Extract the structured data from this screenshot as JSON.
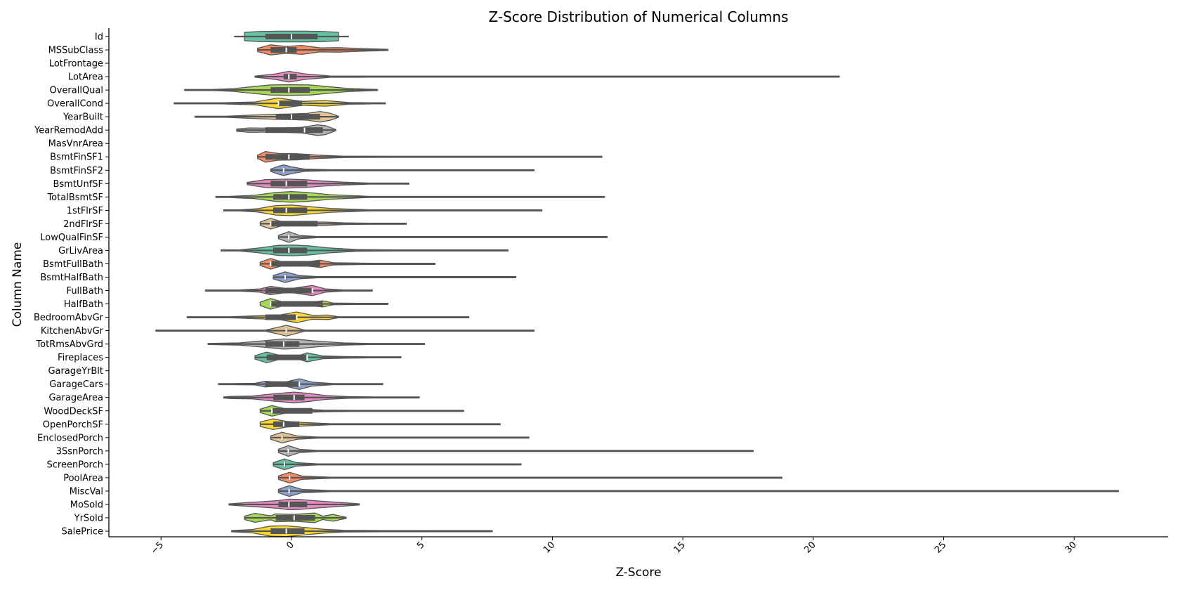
{
  "chart_data": {
    "type": "violin",
    "title": "Z-Score Distribution of Numerical Columns",
    "xlabel": "Z-Score",
    "ylabel": "Column Name",
    "xlim": [
      -7,
      33.6
    ],
    "xticks": [
      -5,
      0,
      5,
      10,
      15,
      20,
      25,
      30
    ],
    "xtick_labels": [
      "−5",
      "0",
      "5",
      "10",
      "15",
      "20",
      "25",
      "30"
    ],
    "grid": false,
    "palette": [
      "#66c2a5",
      "#fc8d62",
      "#8da0cb",
      "#e78ac3",
      "#a6d854",
      "#ffd92f",
      "#e5c494",
      "#b3b3b3"
    ],
    "columns": [
      {
        "name": "Id",
        "min": -2.2,
        "q1": -1.0,
        "median": 0.0,
        "q3": 1.0,
        "max": 2.2,
        "kde": [
          -1.8,
          -1.2,
          -0.6,
          0.0,
          0.6,
          1.2,
          1.8
        ],
        "density": [
          0.75,
          0.9,
          0.95,
          0.95,
          0.95,
          0.9,
          0.75
        ]
      },
      {
        "name": "MSSubClass",
        "min": -1.3,
        "q1": -0.8,
        "median": -0.2,
        "q3": 0.2,
        "max": 3.7,
        "kde": [
          -1.3,
          -0.8,
          -0.2,
          0.4,
          1.1,
          1.8,
          2.6,
          3.7
        ],
        "density": [
          0.3,
          0.9,
          0.6,
          0.8,
          0.35,
          0.4,
          0.25,
          0.05
        ]
      },
      {
        "name": "LotFrontage",
        "empty": true
      },
      {
        "name": "LotArea",
        "min": -1.4,
        "q1": -0.3,
        "median": -0.1,
        "q3": 0.2,
        "max": 21.0,
        "kde": [
          -1.4,
          -0.6,
          -0.1,
          0.5,
          1.5,
          3.0,
          6.0,
          21.0
        ],
        "density": [
          0.1,
          0.5,
          0.95,
          0.5,
          0.12,
          0.06,
          0.03,
          0.02
        ]
      },
      {
        "name": "OverallQual",
        "min": -4.1,
        "q1": -0.8,
        "median": -0.1,
        "q3": 0.7,
        "max": 3.3,
        "kde": [
          -4.1,
          -3.0,
          -2.2,
          -1.5,
          -0.8,
          -0.1,
          0.7,
          1.4,
          2.1,
          2.9,
          3.3
        ],
        "density": [
          0.05,
          0.1,
          0.25,
          0.6,
          0.9,
          0.95,
          0.9,
          0.6,
          0.3,
          0.15,
          0.05
        ]
      },
      {
        "name": "OverallCond",
        "min": -4.5,
        "q1": -0.5,
        "median": -0.5,
        "q3": 0.4,
        "max": 3.6,
        "kde": [
          -4.5,
          -3.6,
          -2.7,
          -1.4,
          -0.5,
          0.4,
          1.3,
          2.2,
          3.1,
          3.6
        ],
        "density": [
          0.03,
          0.05,
          0.08,
          0.25,
          0.95,
          0.35,
          0.5,
          0.15,
          0.1,
          0.05
        ]
      },
      {
        "name": "YearBuilt",
        "min": -3.7,
        "q1": -0.6,
        "median": 0.0,
        "q3": 1.1,
        "max": 1.8,
        "kde": [
          -3.7,
          -2.5,
          -1.5,
          -0.6,
          0.0,
          0.6,
          1.1,
          1.5,
          1.8
        ],
        "density": [
          0.03,
          0.1,
          0.3,
          0.45,
          0.5,
          0.6,
          0.95,
          0.6,
          0.05
        ]
      },
      {
        "name": "YearRemodAdd",
        "min": -2.1,
        "q1": -1.0,
        "median": 0.5,
        "q3": 1.2,
        "max": 1.7,
        "kde": [
          -2.1,
          -1.6,
          -1.0,
          -0.3,
          0.4,
          1.0,
          1.3,
          1.7
        ],
        "density": [
          0.2,
          0.4,
          0.35,
          0.4,
          0.5,
          0.95,
          0.8,
          0.1
        ]
      },
      {
        "name": "MasVnrArea",
        "empty": true
      },
      {
        "name": "BsmtFinSF1",
        "min": -1.3,
        "q1": -1.0,
        "median": -0.1,
        "q3": 0.7,
        "max": 11.9,
        "kde": [
          -1.3,
          -1.0,
          -0.5,
          0.2,
          1.0,
          2.0,
          4.0,
          11.9
        ],
        "density": [
          0.3,
          0.95,
          0.6,
          0.55,
          0.3,
          0.12,
          0.03,
          0.02
        ]
      },
      {
        "name": "BsmtFinSF2",
        "min": -0.8,
        "q1": -0.3,
        "median": -0.3,
        "q3": -0.3,
        "max": 9.3,
        "kde": [
          -0.8,
          -0.5,
          -0.3,
          0.0,
          0.5,
          1.5,
          4.0,
          9.3
        ],
        "density": [
          0.2,
          0.7,
          0.95,
          0.6,
          0.2,
          0.06,
          0.03,
          0.02
        ]
      },
      {
        "name": "BsmtUnfSF",
        "min": -1.7,
        "q1": -0.8,
        "median": -0.2,
        "q3": 0.6,
        "max": 4.5,
        "kde": [
          -1.7,
          -1.0,
          -0.2,
          0.5,
          1.2,
          2.0,
          3.0,
          4.5
        ],
        "density": [
          0.2,
          0.7,
          0.8,
          0.7,
          0.45,
          0.25,
          0.1,
          0.03
        ]
      },
      {
        "name": "TotalBsmtSF",
        "min": -2.9,
        "q1": -0.7,
        "median": -0.1,
        "q3": 0.6,
        "max": 12.0,
        "kde": [
          -2.9,
          -2.4,
          -1.4,
          -0.6,
          0.0,
          0.6,
          1.5,
          3.0,
          5.0,
          12.0
        ],
        "density": [
          0.03,
          0.1,
          0.3,
          0.8,
          0.95,
          0.8,
          0.4,
          0.1,
          0.03,
          0.02
        ]
      },
      {
        "name": "1stFlrSF",
        "min": -2.6,
        "q1": -0.7,
        "median": -0.2,
        "q3": 0.6,
        "max": 9.6,
        "kde": [
          -2.6,
          -2.0,
          -1.3,
          -0.6,
          0.0,
          0.6,
          1.5,
          3.0,
          5.0,
          9.6
        ],
        "density": [
          0.03,
          0.1,
          0.3,
          0.85,
          0.95,
          0.7,
          0.35,
          0.08,
          0.03,
          0.02
        ]
      },
      {
        "name": "2ndFlrSF",
        "min": -1.2,
        "q1": -0.8,
        "median": -0.8,
        "q3": 1.0,
        "max": 4.4,
        "kde": [
          -1.2,
          -0.8,
          -0.4,
          0.2,
          0.8,
          1.3,
          2.0,
          3.0,
          4.4
        ],
        "density": [
          0.3,
          0.95,
          0.4,
          0.2,
          0.3,
          0.3,
          0.15,
          0.06,
          0.03
        ]
      },
      {
        "name": "LowQualFinSF",
        "min": -0.5,
        "q1": -0.1,
        "median": -0.1,
        "q3": -0.1,
        "max": 12.1,
        "kde": [
          -0.5,
          -0.1,
          0.3,
          1.0,
          3.0,
          12.1
        ],
        "density": [
          0.3,
          0.95,
          0.3,
          0.05,
          0.03,
          0.02
        ]
      },
      {
        "name": "GrLivArea",
        "min": -2.7,
        "q1": -0.7,
        "median": -0.1,
        "q3": 0.6,
        "max": 8.3,
        "kde": [
          -2.7,
          -2.0,
          -1.3,
          -0.5,
          0.1,
          0.7,
          1.4,
          2.5,
          4.0,
          8.3
        ],
        "density": [
          0.03,
          0.1,
          0.4,
          0.9,
          0.95,
          0.8,
          0.45,
          0.15,
          0.04,
          0.02
        ]
      },
      {
        "name": "BsmtFullBath",
        "min": -1.2,
        "q1": -0.8,
        "median": -0.8,
        "q3": 1.1,
        "max": 5.5,
        "kde": [
          -1.2,
          -0.8,
          -0.3,
          0.3,
          1.1,
          1.6,
          3.0,
          5.5
        ],
        "density": [
          0.3,
          0.95,
          0.25,
          0.2,
          0.65,
          0.2,
          0.04,
          0.02
        ]
      },
      {
        "name": "BsmtHalfBath",
        "min": -0.7,
        "q1": -0.24,
        "median": -0.24,
        "q3": -0.24,
        "max": 8.6,
        "kde": [
          -0.7,
          -0.24,
          0.3,
          1.0,
          4.0,
          8.6
        ],
        "density": [
          0.3,
          0.95,
          0.3,
          0.05,
          0.03,
          0.02
        ]
      },
      {
        "name": "FullBath",
        "min": -3.3,
        "q1": -1.0,
        "median": 0.8,
        "q3": 0.8,
        "max": 3.1,
        "kde": [
          -3.3,
          -2.0,
          -1.2,
          -0.8,
          -0.1,
          0.8,
          1.3,
          2.0,
          3.1
        ],
        "density": [
          0.04,
          0.06,
          0.3,
          0.75,
          0.3,
          0.9,
          0.3,
          0.06,
          0.03
        ]
      },
      {
        "name": "HalfBath",
        "min": -0.8,
        "q1": -0.8,
        "median": -0.8,
        "q3": 1.2,
        "max": 3.7,
        "kde": [
          -1.2,
          -0.8,
          -0.3,
          0.4,
          1.2,
          1.6,
          2.5,
          3.7
        ],
        "density": [
          0.3,
          0.95,
          0.3,
          0.15,
          0.55,
          0.15,
          0.05,
          0.02
        ]
      },
      {
        "name": "BedroomAbvGr",
        "min": -4.0,
        "q1": -1.0,
        "median": 0.2,
        "q3": 0.2,
        "max": 6.8,
        "kde": [
          -4.0,
          -2.3,
          -1.1,
          -0.4,
          0.2,
          0.8,
          1.4,
          1.8,
          3.5,
          6.8
        ],
        "density": [
          0.03,
          0.05,
          0.3,
          0.45,
          0.95,
          0.35,
          0.4,
          0.1,
          0.03,
          0.02
        ]
      },
      {
        "name": "KitchenAbvGr",
        "min": -5.2,
        "q1": -0.2,
        "median": -0.2,
        "q3": -0.2,
        "max": 9.3,
        "kde": [
          -5.2,
          -1.0,
          -0.5,
          -0.2,
          0.1,
          0.5,
          2.0,
          9.3
        ],
        "density": [
          0.02,
          0.1,
          0.6,
          0.95,
          0.6,
          0.1,
          0.03,
          0.02
        ]
      },
      {
        "name": "TotRmsAbvGrd",
        "min": -3.2,
        "q1": -1.0,
        "median": -0.3,
        "q3": 0.3,
        "max": 5.1,
        "kde": [
          -3.2,
          -2.0,
          -1.0,
          -0.3,
          0.3,
          1.0,
          2.0,
          3.0,
          5.1
        ],
        "density": [
          0.03,
          0.2,
          0.6,
          0.9,
          0.8,
          0.5,
          0.2,
          0.06,
          0.02
        ]
      },
      {
        "name": "Fireplaces",
        "min": -1.4,
        "q1": -0.95,
        "median": 0.6,
        "q3": 0.6,
        "max": 4.2,
        "kde": [
          -1.4,
          -0.95,
          -0.4,
          0.2,
          0.6,
          1.2,
          2.0,
          3.0,
          4.2
        ],
        "density": [
          0.3,
          0.95,
          0.3,
          0.2,
          0.8,
          0.25,
          0.15,
          0.05,
          0.02
        ]
      },
      {
        "name": "GarageYrBlt",
        "empty": true
      },
      {
        "name": "GarageCars",
        "min": -2.8,
        "q1": -1.0,
        "median": 0.3,
        "q3": 0.3,
        "max": 3.5,
        "kde": [
          -2.8,
          -2.3,
          -1.4,
          -1.0,
          -0.3,
          0.3,
          0.8,
          1.6,
          2.0,
          3.5
        ],
        "density": [
          0.03,
          0.1,
          0.15,
          0.5,
          0.3,
          0.95,
          0.35,
          0.1,
          0.05,
          0.02
        ]
      },
      {
        "name": "GarageArea",
        "min": -2.6,
        "q1": -0.7,
        "median": 0.1,
        "q3": 0.5,
        "max": 4.9,
        "kde": [
          -2.6,
          -2.3,
          -1.5,
          -0.7,
          0.1,
          0.6,
          1.3,
          2.2,
          3.2,
          4.9
        ],
        "density": [
          0.04,
          0.2,
          0.25,
          0.65,
          0.95,
          0.75,
          0.35,
          0.15,
          0.05,
          0.02
        ]
      },
      {
        "name": "WoodDeckSF",
        "min": -1.2,
        "q1": -0.75,
        "median": -0.75,
        "q3": 0.8,
        "max": 6.6,
        "kde": [
          -1.2,
          -0.75,
          -0.2,
          0.5,
          1.2,
          2.5,
          4.0,
          6.6
        ],
        "density": [
          0.3,
          0.95,
          0.35,
          0.3,
          0.15,
          0.06,
          0.03,
          0.02
        ]
      },
      {
        "name": "OpenPorchSF",
        "min": -1.2,
        "q1": -0.7,
        "median": -0.3,
        "q3": 0.3,
        "max": 8.0,
        "kde": [
          -1.2,
          -0.7,
          -0.2,
          0.5,
          1.5,
          3.0,
          5.0,
          8.0
        ],
        "density": [
          0.4,
          0.95,
          0.5,
          0.3,
          0.1,
          0.04,
          0.03,
          0.02
        ]
      },
      {
        "name": "EnclosedPorch",
        "min": -0.8,
        "q1": -0.36,
        "median": -0.36,
        "q3": -0.36,
        "max": 9.1,
        "kde": [
          -0.8,
          -0.36,
          0.2,
          1.0,
          4.0,
          9.1
        ],
        "density": [
          0.3,
          0.95,
          0.3,
          0.05,
          0.03,
          0.02
        ]
      },
      {
        "name": "3SsnPorch",
        "min": -0.5,
        "q1": -0.12,
        "median": -0.12,
        "q3": -0.12,
        "max": 17.7,
        "kde": [
          -0.5,
          -0.12,
          0.3,
          1.0,
          5.0,
          17.7
        ],
        "density": [
          0.3,
          0.95,
          0.3,
          0.05,
          0.03,
          0.02
        ]
      },
      {
        "name": "ScreenPorch",
        "min": -0.7,
        "q1": -0.27,
        "median": -0.27,
        "q3": -0.27,
        "max": 8.8,
        "kde": [
          -0.7,
          -0.27,
          0.2,
          1.0,
          4.0,
          8.8
        ],
        "density": [
          0.3,
          0.95,
          0.3,
          0.05,
          0.03,
          0.02
        ]
      },
      {
        "name": "PoolArea",
        "min": -0.5,
        "q1": -0.07,
        "median": -0.07,
        "q3": -0.07,
        "max": 18.8,
        "kde": [
          -0.5,
          -0.07,
          0.4,
          1.5,
          6.0,
          18.8
        ],
        "density": [
          0.3,
          0.95,
          0.3,
          0.05,
          0.03,
          0.02
        ]
      },
      {
        "name": "MiscVal",
        "min": -0.5,
        "q1": -0.09,
        "median": -0.09,
        "q3": -0.09,
        "max": 31.7,
        "kde": [
          -0.5,
          -0.09,
          0.4,
          1.5,
          8.0,
          31.7
        ],
        "density": [
          0.3,
          0.95,
          0.3,
          0.05,
          0.03,
          0.02
        ]
      },
      {
        "name": "MoSold",
        "min": -2.4,
        "q1": -0.5,
        "median": -0.1,
        "q3": 0.6,
        "max": 2.6,
        "kde": [
          -2.4,
          -1.8,
          -1.1,
          -0.5,
          -0.1,
          0.3,
          0.8,
          1.4,
          2.0,
          2.6
        ],
        "density": [
          0.05,
          0.3,
          0.5,
          0.7,
          0.95,
          0.9,
          0.7,
          0.5,
          0.3,
          0.05
        ]
      },
      {
        "name": "YrSold",
        "min": -1.8,
        "q1": -0.6,
        "median": 0.1,
        "q3": 0.9,
        "max": 2.1,
        "kde": [
          -1.8,
          -1.4,
          -0.8,
          -0.6,
          0.1,
          0.9,
          1.2,
          1.6,
          2.1
        ],
        "density": [
          0.3,
          0.8,
          0.35,
          0.7,
          0.6,
          0.85,
          0.3,
          0.6,
          0.1
        ]
      },
      {
        "name": "SalePrice",
        "min": -2.3,
        "q1": -0.8,
        "median": -0.2,
        "q3": 0.5,
        "max": 7.7,
        "kde": [
          -2.3,
          -1.5,
          -0.8,
          -0.2,
          0.4,
          1.2,
          2.0,
          3.5,
          5.0,
          7.7
        ],
        "density": [
          0.05,
          0.3,
          0.9,
          0.95,
          0.7,
          0.35,
          0.15,
          0.05,
          0.03,
          0.02
        ]
      }
    ]
  }
}
